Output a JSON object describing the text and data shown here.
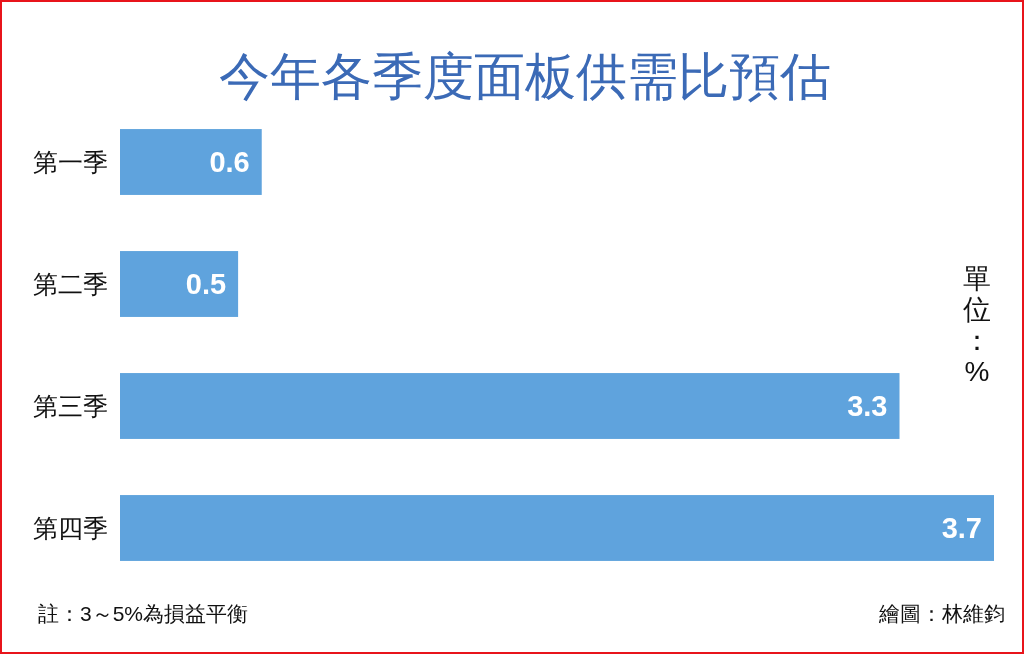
{
  "chart_data": {
    "type": "bar",
    "orientation": "horizontal",
    "title": "今年各季度面板供需比預估",
    "categories": [
      "第一季",
      "第二季",
      "第三季",
      "第四季"
    ],
    "values": [
      0.6,
      0.5,
      3.3,
      3.7
    ],
    "color": "#5fa3dd",
    "data_labels": true,
    "xlabel": "單位：%",
    "annotations": [
      "註：3～5%為損益平衡",
      "繪圖：林維鈞"
    ]
  }
}
